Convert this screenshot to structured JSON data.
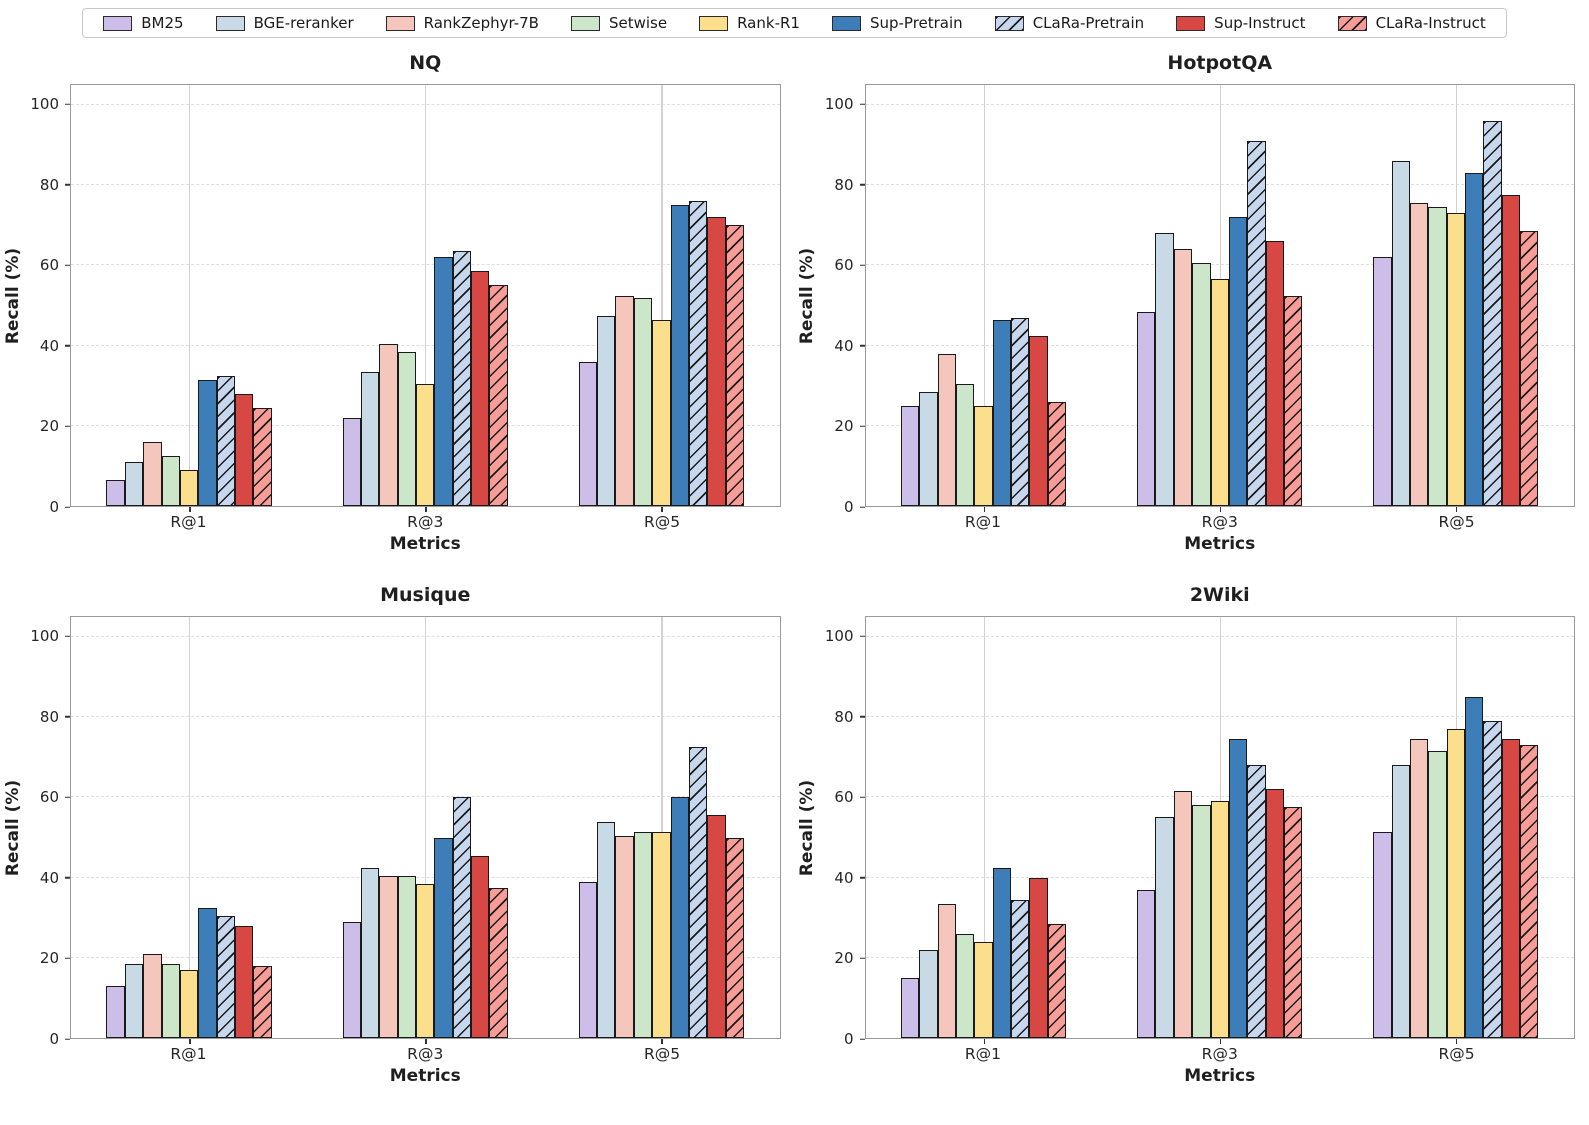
{
  "legend": {
    "items": [
      {
        "label": "BM25",
        "color": "#CDBDE9",
        "hatch": false
      },
      {
        "label": "BGE-reranker",
        "color": "#C7DAE5",
        "hatch": false
      },
      {
        "label": "RankZephyr-7B",
        "color": "#F5C6BC",
        "hatch": false
      },
      {
        "label": "Setwise",
        "color": "#CCE6CA",
        "hatch": false
      },
      {
        "label": "Rank-R1",
        "color": "#FBDF8D",
        "hatch": false
      },
      {
        "label": "Sup-Pretrain",
        "color": "#3E7EB8",
        "hatch": false
      },
      {
        "label": "CLaRa-Pretrain",
        "color": "#C6D7EE",
        "hatch": true
      },
      {
        "label": "Sup-Instruct",
        "color": "#D74743",
        "hatch": false
      },
      {
        "label": "CLaRa-Instruct",
        "color": "#F89C98",
        "hatch": true
      }
    ],
    "position": "top-center",
    "hatch_color": "#1a1a1a"
  },
  "chart_data": [
    {
      "type": "bar",
      "title": "NQ",
      "xlabel": "Metrics",
      "ylabel": "Recall (%)",
      "categories": [
        "R@1",
        "R@3",
        "R@5"
      ],
      "yticks": [
        0,
        20,
        40,
        60,
        80,
        100
      ],
      "ylim": [
        0,
        105
      ],
      "grid": {
        "horizontal": "dashed",
        "vertical": "solid"
      },
      "series": [
        {
          "name": "BM25",
          "values": [
            6.5,
            22,
            36
          ]
        },
        {
          "name": "BGE-reranker",
          "values": [
            11,
            33.5,
            47.5
          ]
        },
        {
          "name": "RankZephyr-7B",
          "values": [
            16,
            40.5,
            52.5
          ]
        },
        {
          "name": "Setwise",
          "values": [
            12.5,
            38.5,
            52
          ]
        },
        {
          "name": "Rank-R1",
          "values": [
            9,
            30.5,
            46.5
          ]
        },
        {
          "name": "Sup-Pretrain",
          "values": [
            31.5,
            62,
            75
          ]
        },
        {
          "name": "CLaRa-Pretrain",
          "values": [
            32.5,
            63.5,
            76
          ]
        },
        {
          "name": "Sup-Instruct",
          "values": [
            28,
            58.5,
            72
          ]
        },
        {
          "name": "CLaRa-Instruct",
          "values": [
            24.5,
            55,
            70
          ]
        }
      ]
    },
    {
      "type": "bar",
      "title": "HotpotQA",
      "xlabel": "Metrics",
      "ylabel": "Recall (%)",
      "categories": [
        "R@1",
        "R@3",
        "R@5"
      ],
      "yticks": [
        0,
        20,
        40,
        60,
        80,
        100
      ],
      "ylim": [
        0,
        105
      ],
      "grid": {
        "horizontal": "dashed",
        "vertical": "solid"
      },
      "series": [
        {
          "name": "BM25",
          "values": [
            25,
            48.5,
            62
          ]
        },
        {
          "name": "BGE-reranker",
          "values": [
            28.5,
            68,
            86
          ]
        },
        {
          "name": "RankZephyr-7B",
          "values": [
            38,
            64,
            75.5
          ]
        },
        {
          "name": "Setwise",
          "values": [
            30.5,
            60.5,
            74.5
          ]
        },
        {
          "name": "Rank-R1",
          "values": [
            25,
            56.5,
            73
          ]
        },
        {
          "name": "Sup-Pretrain",
          "values": [
            46.5,
            72,
            83
          ]
        },
        {
          "name": "CLaRa-Pretrain",
          "values": [
            47,
            91,
            96
          ]
        },
        {
          "name": "Sup-Instruct",
          "values": [
            42.5,
            66,
            77.5
          ]
        },
        {
          "name": "CLaRa-Instruct",
          "values": [
            26,
            52.5,
            68.5
          ]
        }
      ]
    },
    {
      "type": "bar",
      "title": "Musique",
      "xlabel": "Metrics",
      "ylabel": "Recall (%)",
      "categories": [
        "R@1",
        "R@3",
        "R@5"
      ],
      "yticks": [
        0,
        20,
        40,
        60,
        80,
        100
      ],
      "ylim": [
        0,
        105
      ],
      "grid": {
        "horizontal": "dashed",
        "vertical": "solid"
      },
      "series": [
        {
          "name": "BM25",
          "values": [
            13,
            29,
            39
          ]
        },
        {
          "name": "BGE-reranker",
          "values": [
            18.5,
            42.5,
            54
          ]
        },
        {
          "name": "RankZephyr-7B",
          "values": [
            21,
            40.5,
            50.5
          ]
        },
        {
          "name": "Setwise",
          "values": [
            18.5,
            40.5,
            51.5
          ]
        },
        {
          "name": "Rank-R1",
          "values": [
            17,
            38.5,
            51.5
          ]
        },
        {
          "name": "Sup-Pretrain",
          "values": [
            32.5,
            50,
            60
          ]
        },
        {
          "name": "CLaRa-Pretrain",
          "values": [
            30.5,
            60,
            72.5
          ]
        },
        {
          "name": "Sup-Instruct",
          "values": [
            28,
            45.5,
            55.5
          ]
        },
        {
          "name": "CLaRa-Instruct",
          "values": [
            18,
            37.5,
            50
          ]
        }
      ]
    },
    {
      "type": "bar",
      "title": "2Wiki",
      "xlabel": "Metrics",
      "ylabel": "Recall (%)",
      "categories": [
        "R@1",
        "R@3",
        "R@5"
      ],
      "yticks": [
        0,
        20,
        40,
        60,
        80,
        100
      ],
      "ylim": [
        0,
        105
      ],
      "grid": {
        "horizontal": "dashed",
        "vertical": "solid"
      },
      "series": [
        {
          "name": "BM25",
          "values": [
            15,
            37,
            51.5
          ]
        },
        {
          "name": "BGE-reranker",
          "values": [
            22,
            55,
            68
          ]
        },
        {
          "name": "RankZephyr-7B",
          "values": [
            33.5,
            61.5,
            74.5
          ]
        },
        {
          "name": "Setwise",
          "values": [
            26,
            58,
            71.5
          ]
        },
        {
          "name": "Rank-R1",
          "values": [
            24,
            59,
            77
          ]
        },
        {
          "name": "Sup-Pretrain",
          "values": [
            42.5,
            74.5,
            85
          ]
        },
        {
          "name": "CLaRa-Pretrain",
          "values": [
            34.5,
            68,
            79
          ]
        },
        {
          "name": "Sup-Instruct",
          "values": [
            40,
            62,
            74.5
          ]
        },
        {
          "name": "CLaRa-Instruct",
          "values": [
            28.5,
            57.5,
            73
          ]
        }
      ]
    }
  ]
}
